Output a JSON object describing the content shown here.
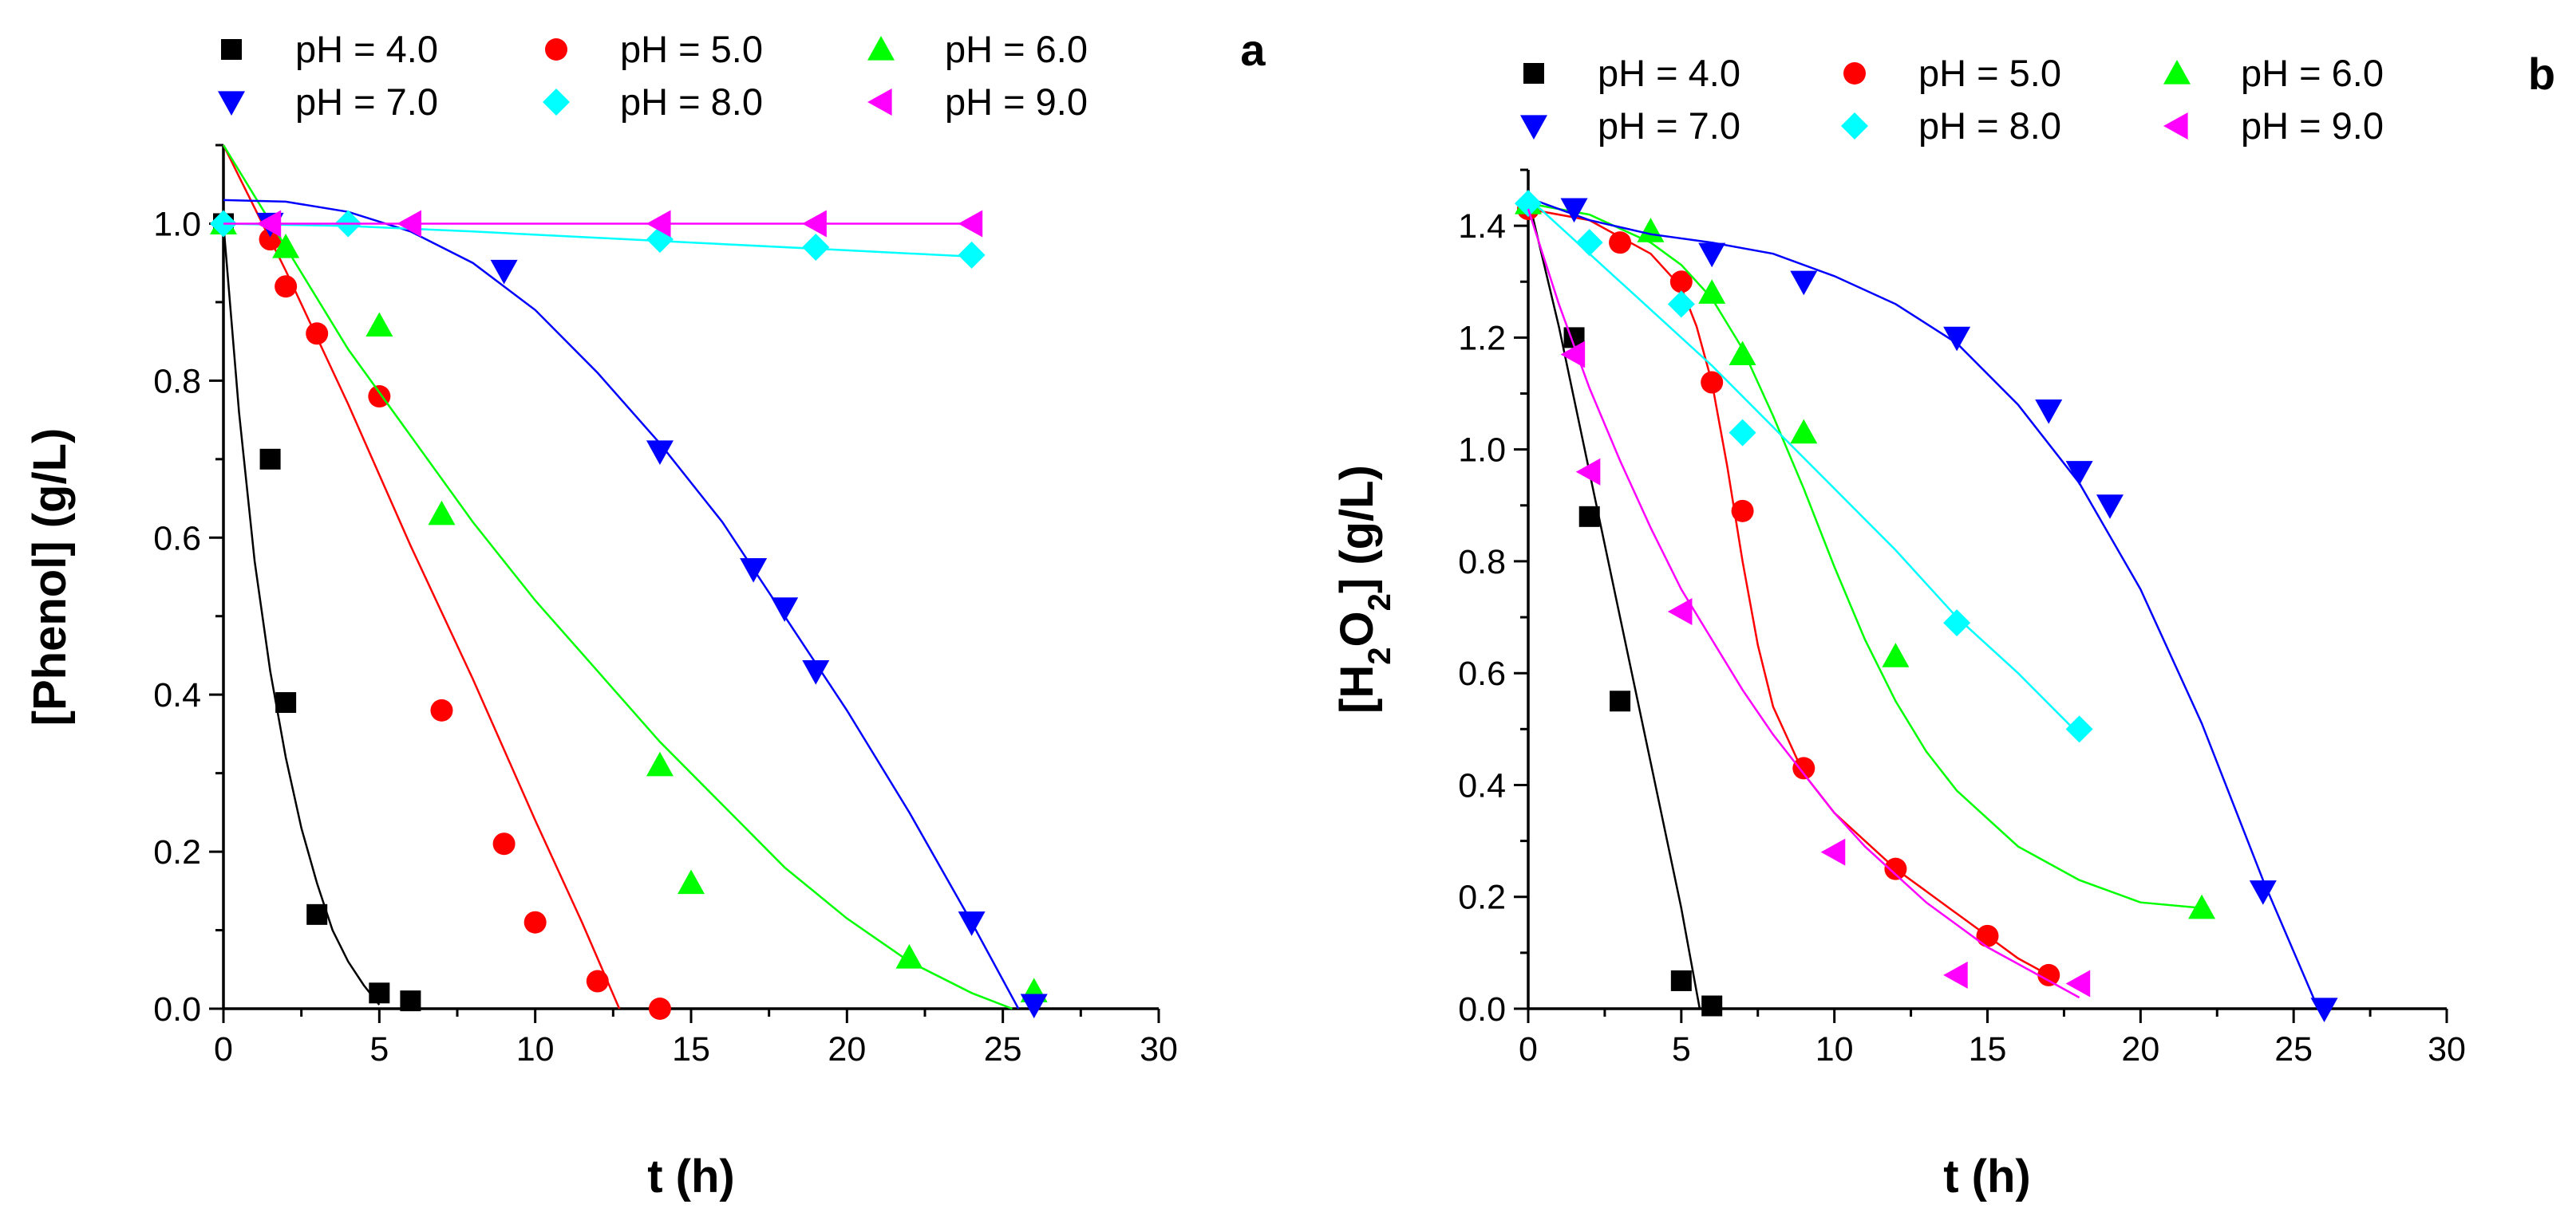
{
  "chart_data": [
    {
      "type": "scatter",
      "panel": "a",
      "xlabel": "t (h)",
      "ylabel": "[Phenol] (g/L)",
      "xlim": [
        0,
        30
      ],
      "ylim": [
        0,
        1.1
      ],
      "xticks": [
        "0",
        "5",
        "10",
        "15",
        "20",
        "25",
        "30"
      ],
      "yticks": [
        "0.0",
        "0.2",
        "0.4",
        "0.6",
        "0.8",
        "1.0"
      ],
      "legend_position": "top",
      "series": [
        {
          "name": "pH = 4.0",
          "marker": "square",
          "color": "#000000",
          "points": [
            [
              0,
              1.0
            ],
            [
              1.5,
              0.7
            ],
            [
              2,
              0.39
            ],
            [
              3,
              0.12
            ],
            [
              5,
              0.02
            ],
            [
              6,
              0.01
            ]
          ],
          "fit": [
            [
              0,
              1.0
            ],
            [
              0.5,
              0.76
            ],
            [
              1,
              0.57
            ],
            [
              1.5,
              0.43
            ],
            [
              2,
              0.32
            ],
            [
              2.5,
              0.23
            ],
            [
              3,
              0.16
            ],
            [
              3.5,
              0.1
            ],
            [
              4,
              0.06
            ],
            [
              4.5,
              0.03
            ],
            [
              5,
              0.005
            ]
          ]
        },
        {
          "name": "pH = 5.0",
          "marker": "circle",
          "color": "#ff0000",
          "points": [
            [
              1.5,
              0.98
            ],
            [
              2,
              0.92
            ],
            [
              3,
              0.86
            ],
            [
              5,
              0.78
            ],
            [
              7,
              0.38
            ],
            [
              9,
              0.21
            ],
            [
              10,
              0.11
            ],
            [
              12,
              0.035
            ],
            [
              14,
              0.0
            ]
          ],
          "fit": [
            [
              0,
              1.1
            ],
            [
              2,
              0.94
            ],
            [
              4,
              0.77
            ],
            [
              6,
              0.59
            ],
            [
              8,
              0.42
            ],
            [
              10,
              0.24
            ],
            [
              11.5,
              0.11
            ],
            [
              12.7,
              0.0
            ]
          ]
        },
        {
          "name": "pH = 6.0",
          "marker": "triangle-up",
          "color": "#00ff00",
          "points": [
            [
              0,
              1.0
            ],
            [
              2,
              0.97
            ],
            [
              5,
              0.87
            ],
            [
              7,
              0.63
            ],
            [
              14,
              0.31
            ],
            [
              15,
              0.16
            ],
            [
              22,
              0.065
            ],
            [
              26,
              0.022
            ]
          ],
          "fit": [
            [
              0,
              1.1
            ],
            [
              2,
              0.97
            ],
            [
              4,
              0.84
            ],
            [
              6,
              0.73
            ],
            [
              8,
              0.62
            ],
            [
              10,
              0.52
            ],
            [
              12,
              0.43
            ],
            [
              14,
              0.34
            ],
            [
              16,
              0.26
            ],
            [
              18,
              0.18
            ],
            [
              20,
              0.115
            ],
            [
              22,
              0.06
            ],
            [
              24,
              0.02
            ],
            [
              25.3,
              0.0
            ]
          ]
        },
        {
          "name": "pH = 7.0",
          "marker": "triangle-down",
          "color": "#0000ff",
          "points": [
            [
              1.5,
              1.0
            ],
            [
              9,
              0.94
            ],
            [
              14,
              0.71
            ],
            [
              17,
              0.56
            ],
            [
              18,
              0.51
            ],
            [
              19,
              0.43
            ],
            [
              24,
              0.11
            ],
            [
              26,
              0.005
            ]
          ],
          "fit": [
            [
              0,
              1.03
            ],
            [
              2,
              1.028
            ],
            [
              4,
              1.015
            ],
            [
              6,
              0.99
            ],
            [
              8,
              0.95
            ],
            [
              10,
              0.89
            ],
            [
              12,
              0.81
            ],
            [
              14,
              0.72
            ],
            [
              16,
              0.62
            ],
            [
              18,
              0.5
            ],
            [
              20,
              0.38
            ],
            [
              22,
              0.25
            ],
            [
              24,
              0.11
            ],
            [
              25.5,
              0.0
            ]
          ]
        },
        {
          "name": "pH = 8.0",
          "marker": "diamond",
          "color": "#00ffff",
          "points": [
            [
              0,
              1.0
            ],
            [
              4,
              1.0
            ],
            [
              14,
              0.98
            ],
            [
              19,
              0.97
            ],
            [
              24,
              0.96
            ]
          ],
          "fit": [
            [
              0,
              1.0
            ],
            [
              4,
              0.997
            ],
            [
              8,
              0.99
            ],
            [
              12,
              0.982
            ],
            [
              16,
              0.974
            ],
            [
              20,
              0.966
            ],
            [
              24,
              0.958
            ]
          ]
        },
        {
          "name": "pH = 9.0",
          "marker": "triangle-left",
          "color": "#ff00ff",
          "points": [
            [
              1.5,
              1.0
            ],
            [
              6,
              1.0
            ],
            [
              14,
              1.0
            ],
            [
              19,
              1.0
            ],
            [
              24,
              1.0
            ]
          ],
          "fit": [
            [
              0,
              1.0
            ],
            [
              24,
              1.0
            ]
          ]
        }
      ]
    },
    {
      "type": "scatter",
      "panel": "b",
      "xlabel": "t (h)",
      "ylabel": "[H",
      "ylabel_sub1": "2",
      "ylabel_mid": "O",
      "ylabel_sub2": "2",
      "ylabel_end": "] (g/L)",
      "xlim": [
        0,
        30
      ],
      "ylim": [
        0,
        1.5
      ],
      "xticks": [
        "0",
        "5",
        "10",
        "15",
        "20",
        "25",
        "30"
      ],
      "yticks": [
        "0.0",
        "0.2",
        "0.4",
        "0.6",
        "0.8",
        "1.0",
        "1.2",
        "1.4"
      ],
      "legend_position": "top",
      "series": [
        {
          "name": "pH = 4.0",
          "marker": "square",
          "color": "#000000",
          "points": [
            [
              1.5,
              1.2
            ],
            [
              2,
              0.88
            ],
            [
              3,
              0.55
            ],
            [
              5,
              0.05
            ],
            [
              6,
              0.005
            ]
          ],
          "fit": [
            [
              0,
              1.45
            ],
            [
              1,
              1.22
            ],
            [
              2,
              0.96
            ],
            [
              3,
              0.7
            ],
            [
              4,
              0.44
            ],
            [
              5,
              0.18
            ],
            [
              5.6,
              0.0
            ]
          ]
        },
        {
          "name": "pH = 5.0",
          "marker": "circle",
          "color": "#ff0000",
          "points": [
            [
              0,
              1.43
            ],
            [
              3,
              1.37
            ],
            [
              5,
              1.3
            ],
            [
              6,
              1.12
            ],
            [
              7,
              0.89
            ],
            [
              9,
              0.43
            ],
            [
              12,
              0.25
            ],
            [
              15,
              0.13
            ],
            [
              17,
              0.06
            ]
          ],
          "fit": [
            [
              0,
              1.43
            ],
            [
              2,
              1.41
            ],
            [
              3,
              1.38
            ],
            [
              4,
              1.35
            ],
            [
              5,
              1.29
            ],
            [
              5.5,
              1.22
            ],
            [
              6,
              1.12
            ],
            [
              6.5,
              0.97
            ],
            [
              7,
              0.8
            ],
            [
              7.5,
              0.65
            ],
            [
              8,
              0.54
            ],
            [
              9,
              0.42
            ],
            [
              10,
              0.35
            ],
            [
              11,
              0.3
            ],
            [
              12,
              0.25
            ],
            [
              13,
              0.21
            ],
            [
              14,
              0.17
            ],
            [
              15,
              0.13
            ],
            [
              16,
              0.09
            ],
            [
              17,
              0.06
            ]
          ]
        },
        {
          "name": "pH = 6.0",
          "marker": "triangle-up",
          "color": "#00ff00",
          "points": [
            [
              0,
              1.44
            ],
            [
              4,
              1.39
            ],
            [
              6,
              1.28
            ],
            [
              7,
              1.17
            ],
            [
              9,
              1.03
            ],
            [
              12,
              0.63
            ],
            [
              22,
              0.18
            ]
          ],
          "fit": [
            [
              0,
              1.44
            ],
            [
              2,
              1.42
            ],
            [
              4,
              1.37
            ],
            [
              5,
              1.33
            ],
            [
              6,
              1.27
            ],
            [
              7,
              1.18
            ],
            [
              8,
              1.06
            ],
            [
              9,
              0.93
            ],
            [
              10,
              0.79
            ],
            [
              11,
              0.66
            ],
            [
              12,
              0.55
            ],
            [
              13,
              0.46
            ],
            [
              14,
              0.39
            ],
            [
              16,
              0.29
            ],
            [
              18,
              0.23
            ],
            [
              20,
              0.19
            ],
            [
              22,
              0.18
            ]
          ]
        },
        {
          "name": "pH = 7.0",
          "marker": "triangle-down",
          "color": "#0000ff",
          "points": [
            [
              1.5,
              1.43
            ],
            [
              6,
              1.35
            ],
            [
              9,
              1.3
            ],
            [
              14,
              1.2
            ],
            [
              17,
              1.07
            ],
            [
              18,
              0.96
            ],
            [
              19,
              0.9
            ],
            [
              24,
              0.21
            ],
            [
              26,
              0.0
            ]
          ],
          "fit": [
            [
              0,
              1.45
            ],
            [
              2,
              1.41
            ],
            [
              4,
              1.385
            ],
            [
              6,
              1.37
            ],
            [
              8,
              1.35
            ],
            [
              10,
              1.31
            ],
            [
              12,
              1.26
            ],
            [
              14,
              1.19
            ],
            [
              16,
              1.08
            ],
            [
              18,
              0.94
            ],
            [
              20,
              0.75
            ],
            [
              22,
              0.51
            ],
            [
              24,
              0.23
            ],
            [
              25.8,
              0.0
            ]
          ]
        },
        {
          "name": "pH = 8.0",
          "marker": "diamond",
          "color": "#00ffff",
          "points": [
            [
              0,
              1.44
            ],
            [
              2,
              1.37
            ],
            [
              5,
              1.26
            ],
            [
              7,
              1.03
            ],
            [
              14,
              0.69
            ],
            [
              18,
              0.5
            ]
          ],
          "fit": [
            [
              0,
              1.45
            ],
            [
              2,
              1.35
            ],
            [
              4,
              1.25
            ],
            [
              6,
              1.15
            ],
            [
              8,
              1.04
            ],
            [
              10,
              0.93
            ],
            [
              12,
              0.82
            ],
            [
              14,
              0.7
            ],
            [
              16,
              0.6
            ],
            [
              18,
              0.49
            ]
          ]
        },
        {
          "name": "pH = 9.0",
          "marker": "triangle-left",
          "color": "#ff00ff",
          "points": [
            [
              1.5,
              1.17
            ],
            [
              2,
              0.96
            ],
            [
              5,
              0.71
            ],
            [
              10,
              0.28
            ],
            [
              14,
              0.06
            ],
            [
              18,
              0.045
            ]
          ],
          "fit": [
            [
              0,
              1.43
            ],
            [
              1,
              1.26
            ],
            [
              2,
              1.11
            ],
            [
              3,
              0.98
            ],
            [
              4,
              0.86
            ],
            [
              5,
              0.75
            ],
            [
              6,
              0.66
            ],
            [
              7,
              0.57
            ],
            [
              8,
              0.49
            ],
            [
              9,
              0.42
            ],
            [
              10,
              0.35
            ],
            [
              11,
              0.29
            ],
            [
              12,
              0.24
            ],
            [
              13,
              0.19
            ],
            [
              14,
              0.15
            ],
            [
              15,
              0.11
            ],
            [
              16,
              0.08
            ],
            [
              17,
              0.05
            ],
            [
              18,
              0.02
            ]
          ]
        }
      ]
    }
  ]
}
